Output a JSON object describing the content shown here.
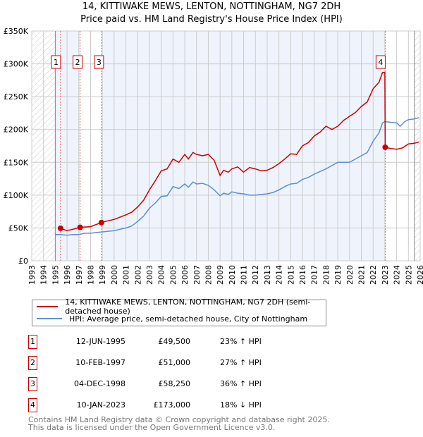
{
  "chart_data": {
    "type": "line",
    "title": "14, KITTIWAKE MEWS, LENTON, NOTTINGHAM, NG7 2DH",
    "subtitle": "Price paid vs. HM Land Registry's House Price Index (HPI)",
    "xlim": [
      1993,
      2026
    ],
    "ylim": [
      0,
      350000
    ],
    "x_ticks": [
      "1993",
      "1994",
      "1995",
      "1996",
      "1997",
      "1998",
      "1999",
      "2000",
      "2001",
      "2002",
      "2003",
      "2004",
      "2005",
      "2006",
      "2007",
      "2008",
      "2009",
      "2010",
      "2011",
      "2012",
      "2013",
      "2014",
      "2015",
      "2016",
      "2017",
      "2018",
      "2019",
      "2020",
      "2021",
      "2022",
      "2023",
      "2024",
      "2025",
      "2026"
    ],
    "y_ticks": [
      {
        "v": 0,
        "label": "£0"
      },
      {
        "v": 50000,
        "label": "£50K"
      },
      {
        "v": 100000,
        "label": "£100K"
      },
      {
        "v": 150000,
        "label": "£150K"
      },
      {
        "v": 200000,
        "label": "£200K"
      },
      {
        "v": 250000,
        "label": "£250K"
      },
      {
        "v": 300000,
        "label": "£300K"
      },
      {
        "v": 350000,
        "label": "£350K"
      }
    ],
    "grid": true,
    "legend_placement": "below",
    "series": [
      {
        "name": "14, KITTIWAKE MEWS, LENTON, NOTTINGHAM, NG7 2DH (semi-detached house)",
        "color": "#cc0000",
        "x": [
          1995.45,
          1996,
          1996.5,
          1997.1,
          1998,
          1998.92,
          1999.5,
          2000,
          2001,
          2001.5,
          2002,
          2002.5,
          2003,
          2003.5,
          2004,
          2004.5,
          2005,
          2005.5,
          2006,
          2006.3,
          2006.7,
          2007,
          2007.5,
          2008,
          2008.5,
          2009,
          2009.3,
          2009.7,
          2010,
          2010.5,
          2011,
          2011.5,
          2012,
          2012.5,
          2013,
          2013.5,
          2014,
          2014.5,
          2015,
          2015.5,
          2016,
          2016.5,
          2017,
          2017.5,
          2018,
          2018.5,
          2019,
          2019.5,
          2020,
          2020.5,
          2021,
          2021.5,
          2022,
          2022.5,
          2022.8,
          2023.0,
          2023.03,
          2023.5,
          2024,
          2024.5,
          2025,
          2025.5,
          2025.9
        ],
        "y": [
          49500,
          46000,
          48000,
          51000,
          52000,
          58250,
          61000,
          63000,
          70000,
          74000,
          82000,
          92000,
          108000,
          122000,
          137000,
          140000,
          155000,
          150000,
          162000,
          155000,
          165000,
          162000,
          160000,
          162000,
          153000,
          130000,
          138000,
          135000,
          140000,
          143000,
          135000,
          142000,
          140000,
          137000,
          138000,
          142000,
          148000,
          155000,
          163000,
          162000,
          175000,
          180000,
          190000,
          196000,
          205000,
          200000,
          205000,
          214000,
          220000,
          226000,
          235000,
          242000,
          262000,
          272000,
          287000,
          287000,
          173000,
          171000,
          170000,
          172000,
          178000,
          179000,
          181000
        ]
      },
      {
        "name": "HPI: Average price, semi-detached house, City of Nottingham",
        "color": "#5b8fd4",
        "x": [
          1995.0,
          1995.5,
          1996,
          1996.5,
          1997,
          1997.5,
          1998,
          1998.5,
          1999,
          1999.5,
          2000,
          2000.5,
          2001,
          2001.5,
          2002,
          2002.5,
          2003,
          2003.5,
          2004,
          2004.5,
          2005,
          2005.5,
          2006,
          2006.3,
          2006.7,
          2007,
          2007.5,
          2008,
          2008.5,
          2009,
          2009.3,
          2009.7,
          2010,
          2010.5,
          2011,
          2011.5,
          2012,
          2012.5,
          2013,
          2013.5,
          2014,
          2014.5,
          2015,
          2015.5,
          2016,
          2016.5,
          2017,
          2017.5,
          2018,
          2018.5,
          2019,
          2019.5,
          2020,
          2020.5,
          2021,
          2021.5,
          2022,
          2022.5,
          2022.8,
          2023,
          2023.5,
          2024,
          2024.3,
          2024.7,
          2025,
          2025.5,
          2025.9
        ],
        "y": [
          40000,
          40000,
          39000,
          40000,
          40000,
          42000,
          42000,
          43000,
          44000,
          45000,
          46000,
          48000,
          50000,
          53000,
          60000,
          68000,
          80000,
          88000,
          98000,
          99000,
          113000,
          110000,
          117000,
          112000,
          120000,
          117000,
          118000,
          115000,
          108000,
          99000,
          103000,
          101000,
          105000,
          103000,
          102000,
          100000,
          100000,
          101000,
          102000,
          104000,
          108000,
          113000,
          117000,
          118000,
          124000,
          127000,
          132000,
          136000,
          140000,
          145000,
          150000,
          150000,
          150000,
          155000,
          160000,
          165000,
          182000,
          195000,
          210000,
          212000,
          211000,
          210000,
          205000,
          212000,
          215000,
          216000,
          218000
        ]
      }
    ],
    "sales": [
      {
        "n": "1",
        "date": "12-JUN-1995",
        "x": 1995.45,
        "price": "£49,500",
        "value": 49500,
        "hpi": "23% ↑ HPI"
      },
      {
        "n": "2",
        "date": "10-FEB-1997",
        "x": 1997.11,
        "price": "£51,000",
        "value": 51000,
        "hpi": "27% ↑ HPI"
      },
      {
        "n": "3",
        "date": "04-DEC-1998",
        "x": 1998.92,
        "price": "£58,250",
        "value": 58250,
        "hpi": "36% ↑ HPI"
      },
      {
        "n": "4",
        "date": "10-JAN-2023",
        "x": 2023.03,
        "price": "£173,000",
        "value": 173000,
        "hpi": "18% ↓ HPI"
      }
    ]
  },
  "footer": {
    "line1": "Contains HM Land Registry data © Crown copyright and database right 2025.",
    "line2": "This data is licensed under the Open Government Licence v3.0."
  }
}
